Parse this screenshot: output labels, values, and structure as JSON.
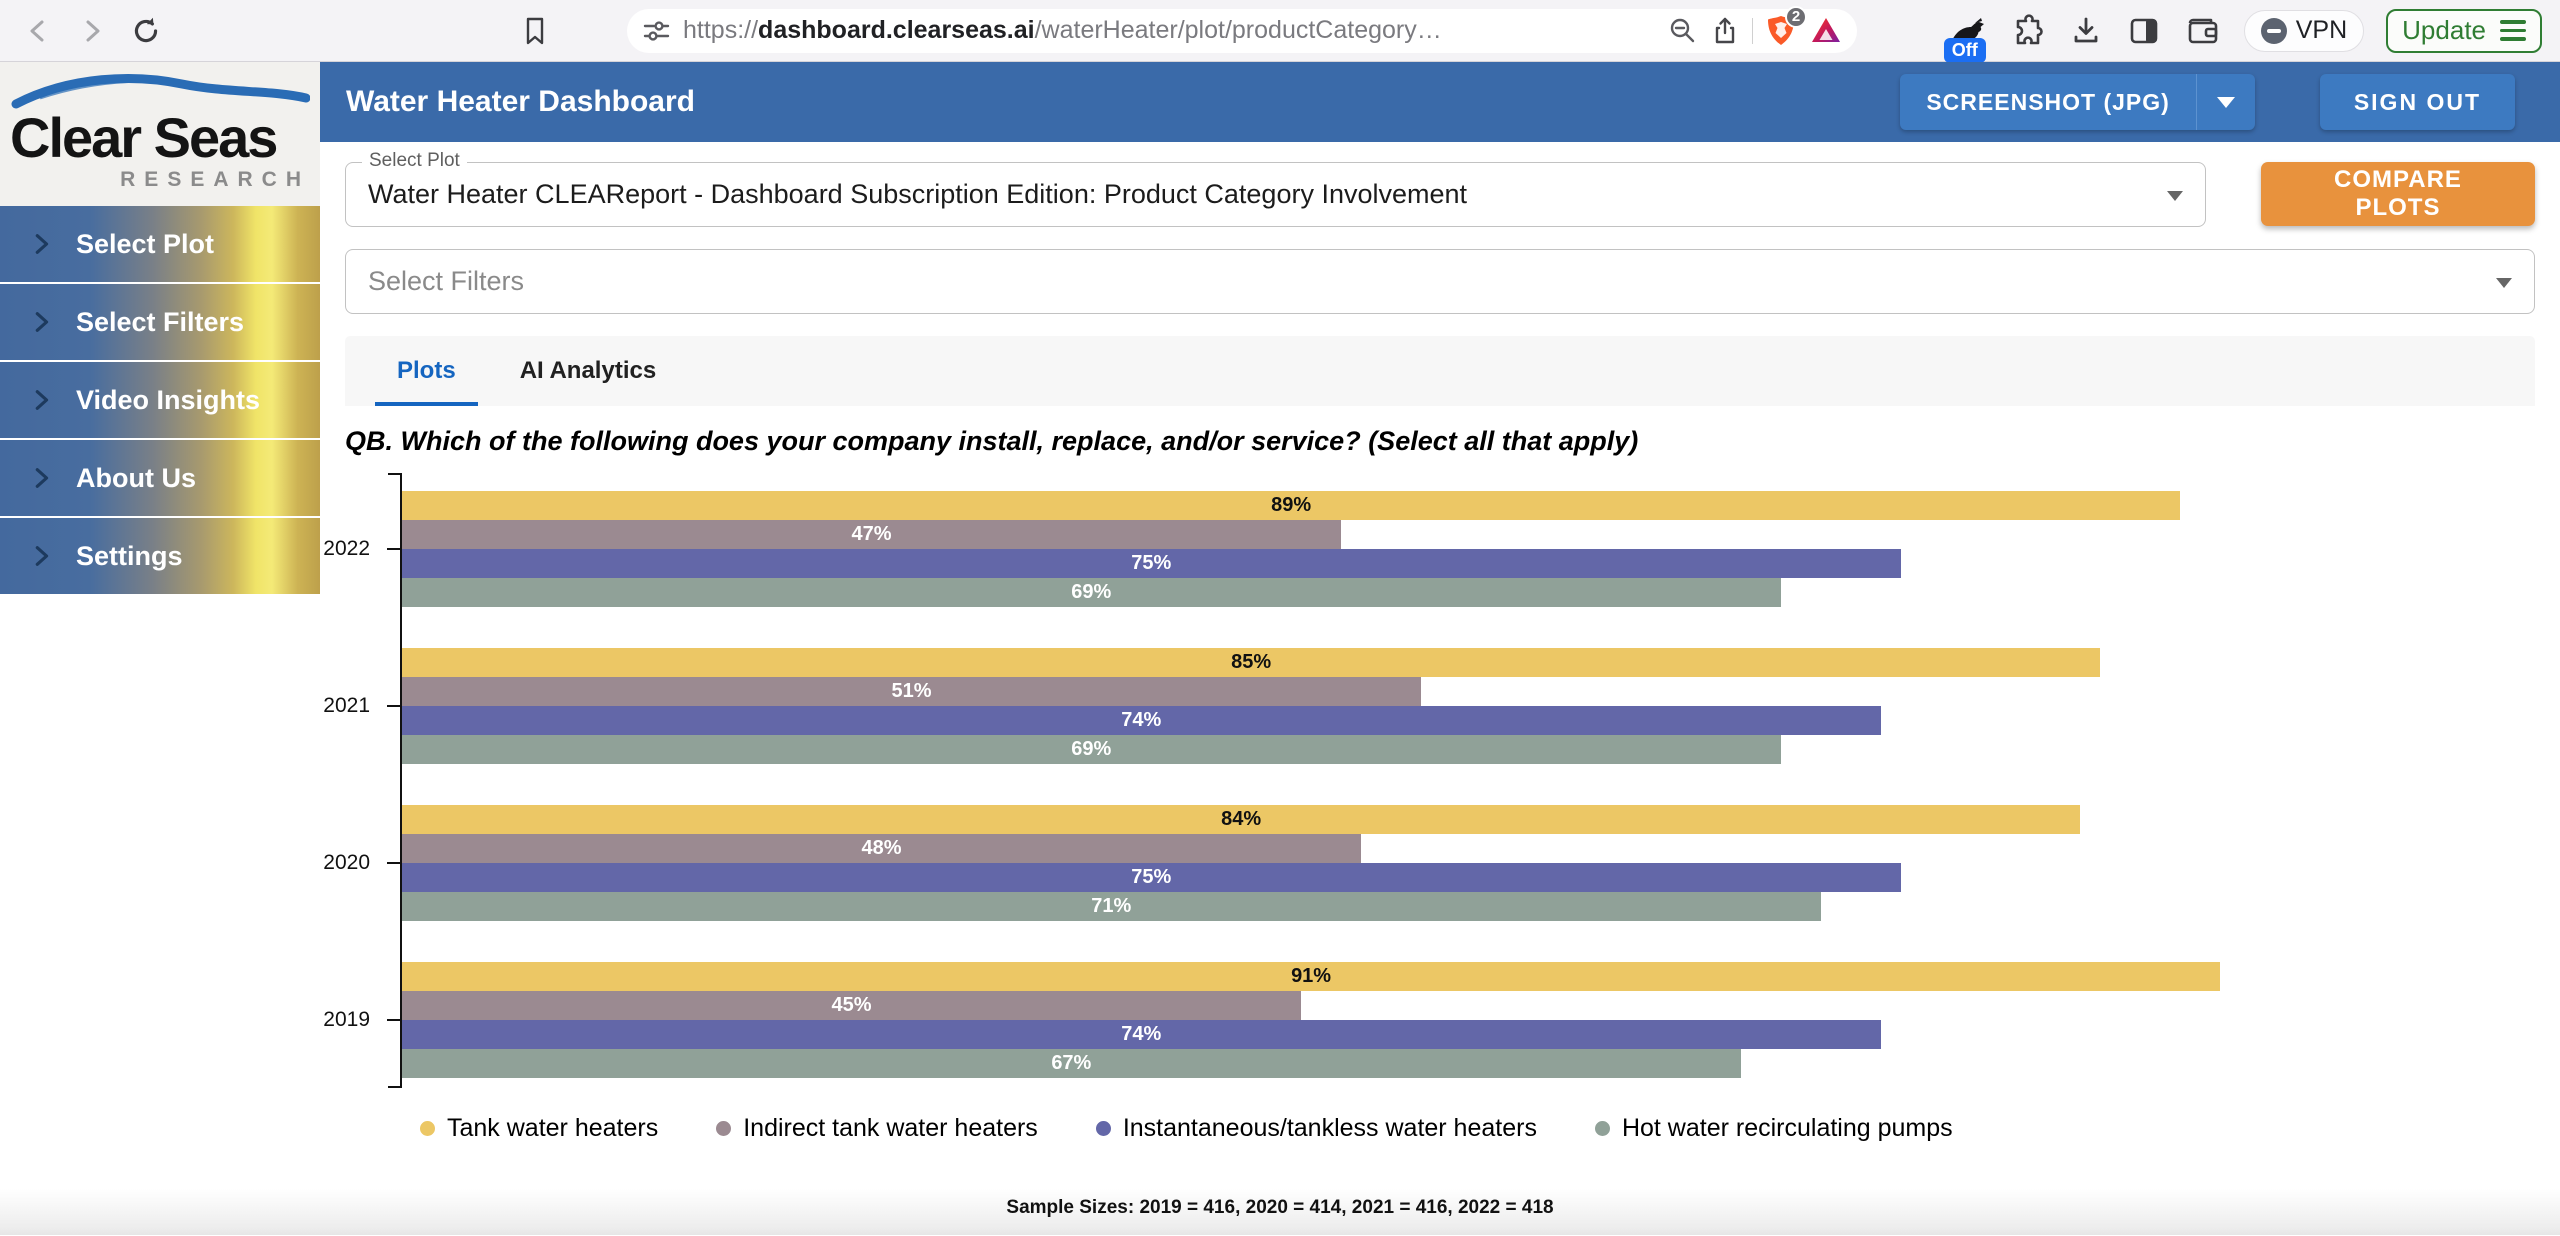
{
  "colors": {
    "toolbar_bg": "#f4f3f6",
    "header_blue": "#3a6aa9",
    "button_blue": "#3d7ac1",
    "orange": "#e8923d",
    "tab_blue": "#1565c0",
    "green": "#2f7d33"
  },
  "browser": {
    "url_scheme": "https://",
    "url_host": "dashboard.clearseas.ai",
    "url_path": "/waterHeater/plot/productCategory…",
    "shield_badge": "2",
    "off_badge": "Off",
    "vpn_label": "VPN",
    "update_label": "Update"
  },
  "header": {
    "title": "Water Heater Dashboard",
    "screenshot_button": "SCREENSHOT (JPG)",
    "sign_out_button": "SIGN OUT"
  },
  "sidebar": {
    "logo_name": "Clear Seas",
    "logo_sub": "RESEARCH",
    "items": [
      {
        "label": "Select Plot"
      },
      {
        "label": "Select Filters"
      },
      {
        "label": "Video Insights"
      },
      {
        "label": "About Us"
      },
      {
        "label": "Settings"
      }
    ]
  },
  "controls": {
    "select_plot_label": "Select Plot",
    "select_plot_value": "Water Heater CLEAReport - Dashboard Subscription Edition: Product Category Involvement",
    "select_filters_placeholder": "Select Filters",
    "compare_button": "COMPARE PLOTS"
  },
  "tabs": [
    {
      "label": "Plots",
      "active": true
    },
    {
      "label": "AI Analytics",
      "active": false
    }
  ],
  "chart_data": {
    "type": "bar",
    "orientation": "horizontal",
    "title": "QB. Which of the following does your company install, replace, and/or service? (Select all that apply)",
    "categories": [
      "2022",
      "2021",
      "2020",
      "2019"
    ],
    "series": [
      {
        "name": "Tank water heaters",
        "color": "#ecc765",
        "label_color": "#111111",
        "values": [
          89,
          85,
          84,
          91
        ]
      },
      {
        "name": "Indirect tank water heaters",
        "color": "#9b8a91",
        "label_color": "#ffffff",
        "values": [
          47,
          51,
          48,
          45
        ]
      },
      {
        "name": "Instantaneous/tankless water heaters",
        "color": "#6367a8",
        "label_color": "#ffffff",
        "values": [
          75,
          74,
          75,
          74
        ]
      },
      {
        "name": "Hot water recirculating pumps",
        "color": "#90a198",
        "label_color": "#ffffff",
        "values": [
          69,
          69,
          71,
          67
        ]
      }
    ],
    "xlim": [
      0,
      100
    ],
    "value_suffix": "%",
    "legend_position": "bottom",
    "grid": false,
    "footnote": "Sample Sizes: 2019 = 416, 2020 = 414, 2021 = 416, 2022 = 418"
  }
}
